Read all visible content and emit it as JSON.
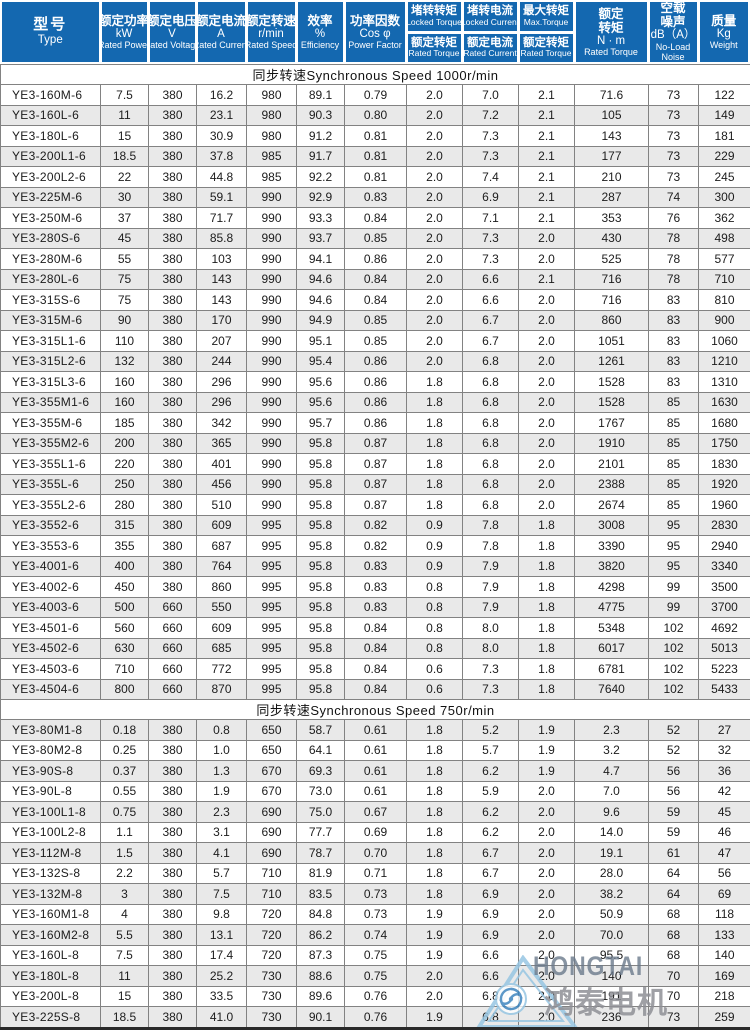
{
  "colors": {
    "header_blue": "#1468b0",
    "row_alt": "#e9e9e9",
    "grid_border": "#828282",
    "outer_border": "#5a5a5a",
    "cell_text": "#1c1c1c",
    "section_text": "#111111",
    "watermark_blue": "#97c6e3",
    "watermark_swirl": "#3f86bf",
    "watermark_brand": "#6b7a8c",
    "watermark_zh": "#8f9096",
    "bottom_line": "#2a2a2a"
  },
  "header": {
    "columns": [
      {
        "type": "plain",
        "lines": [
          {
            "t": "型号",
            "s": "zh-big"
          },
          {
            "t": "Type",
            "s": "unit"
          }
        ]
      },
      {
        "type": "plain",
        "lines": [
          {
            "t": "额定功率",
            "s": "zh"
          },
          {
            "t": "kW",
            "s": "unit"
          },
          {
            "t": "Rated Power",
            "s": "en"
          }
        ]
      },
      {
        "type": "plain",
        "lines": [
          {
            "t": "额定电压",
            "s": "zh"
          },
          {
            "t": "V",
            "s": "unit"
          },
          {
            "t": "Rated Voltage",
            "s": "en"
          }
        ]
      },
      {
        "type": "plain",
        "lines": [
          {
            "t": "额定电流",
            "s": "zh"
          },
          {
            "t": "A",
            "s": "unit"
          },
          {
            "t": "Rated Current",
            "s": "en"
          }
        ]
      },
      {
        "type": "plain",
        "lines": [
          {
            "t": "额定转速",
            "s": "zh"
          },
          {
            "t": "r/min",
            "s": "unit"
          },
          {
            "t": "Rated Speed",
            "s": "en"
          }
        ]
      },
      {
        "type": "plain",
        "lines": [
          {
            "t": "效率",
            "s": "zh"
          },
          {
            "t": "%",
            "s": "unit"
          },
          {
            "t": "Efficiency",
            "s": "en"
          }
        ]
      },
      {
        "type": "plain",
        "lines": [
          {
            "t": "功率因数",
            "s": "zh"
          },
          {
            "t": "Cos φ",
            "s": "unit"
          },
          {
            "t": "Power Factor",
            "s": "en"
          }
        ]
      },
      {
        "type": "split",
        "top": [
          {
            "t": "堵转转矩",
            "s": "zh-s"
          },
          {
            "t": "Locked Torque",
            "s": "en-s"
          }
        ],
        "bottom": [
          {
            "t": "额定转矩",
            "s": "zh-s"
          },
          {
            "t": "Rated Torque",
            "s": "en-s"
          }
        ]
      },
      {
        "type": "split",
        "top": [
          {
            "t": "堵转电流",
            "s": "zh-s"
          },
          {
            "t": "Locked Current",
            "s": "en-s"
          }
        ],
        "bottom": [
          {
            "t": "额定电流",
            "s": "zh-s"
          },
          {
            "t": "Rated Current",
            "s": "en-s"
          }
        ]
      },
      {
        "type": "split",
        "top": [
          {
            "t": "最大转矩",
            "s": "zh-s"
          },
          {
            "t": "Max.Torque",
            "s": "en-s"
          }
        ],
        "bottom": [
          {
            "t": "额定转矩",
            "s": "zh-s"
          },
          {
            "t": "Rated Torque",
            "s": "en-s"
          }
        ]
      },
      {
        "type": "plain",
        "lines": [
          {
            "t": "额定",
            "s": "zh"
          },
          {
            "t": "转矩",
            "s": "zh"
          },
          {
            "t": "N · m",
            "s": "unit"
          },
          {
            "t": "Rated Torque",
            "s": "en"
          }
        ]
      },
      {
        "type": "plain",
        "lines": [
          {
            "t": "空载",
            "s": "zh"
          },
          {
            "t": "噪声",
            "s": "zh"
          },
          {
            "t": "dB（A）",
            "s": "unit"
          },
          {
            "t": "No-Load",
            "s": "en"
          },
          {
            "t": "Noise",
            "s": "en"
          }
        ]
      },
      {
        "type": "plain",
        "lines": [
          {
            "t": "质量",
            "s": "zh"
          },
          {
            "t": "Kg",
            "s": "unit"
          },
          {
            "t": "Weight",
            "s": "en"
          }
        ]
      }
    ]
  },
  "sections": [
    {
      "title": "同步转速Synchronous Speed  1000r/min",
      "rows": [
        [
          "YE3-160M-6",
          "7.5",
          "380",
          "16.2",
          "980",
          "89.1",
          "0.79",
          "2.0",
          "7.0",
          "2.1",
          "71.6",
          "73",
          "122"
        ],
        [
          "YE3-160L-6",
          "11",
          "380",
          "23.1",
          "980",
          "90.3",
          "0.80",
          "2.0",
          "7.2",
          "2.1",
          "105",
          "73",
          "149"
        ],
        [
          "YE3-180L-6",
          "15",
          "380",
          "30.9",
          "980",
          "91.2",
          "0.81",
          "2.0",
          "7.3",
          "2.1",
          "143",
          "73",
          "181"
        ],
        [
          "YE3-200L1-6",
          "18.5",
          "380",
          "37.8",
          "985",
          "91.7",
          "0.81",
          "2.0",
          "7.3",
          "2.1",
          "177",
          "73",
          "229"
        ],
        [
          "YE3-200L2-6",
          "22",
          "380",
          "44.8",
          "985",
          "92.2",
          "0.81",
          "2.0",
          "7.4",
          "2.1",
          "210",
          "73",
          "245"
        ],
        [
          "YE3-225M-6",
          "30",
          "380",
          "59.1",
          "990",
          "92.9",
          "0.83",
          "2.0",
          "6.9",
          "2.1",
          "287",
          "74",
          "300"
        ],
        [
          "YE3-250M-6",
          "37",
          "380",
          "71.7",
          "990",
          "93.3",
          "0.84",
          "2.0",
          "7.1",
          "2.1",
          "353",
          "76",
          "362"
        ],
        [
          "YE3-280S-6",
          "45",
          "380",
          "85.8",
          "990",
          "93.7",
          "0.85",
          "2.0",
          "7.3",
          "2.0",
          "430",
          "78",
          "498"
        ],
        [
          "YE3-280M-6",
          "55",
          "380",
          "103",
          "990",
          "94.1",
          "0.86",
          "2.0",
          "7.3",
          "2.0",
          "525",
          "78",
          "577"
        ],
        [
          "YE3-280L-6",
          "75",
          "380",
          "143",
          "990",
          "94.6",
          "0.84",
          "2.0",
          "6.6",
          "2.1",
          "716",
          "78",
          "710"
        ],
        [
          "YE3-315S-6",
          "75",
          "380",
          "143",
          "990",
          "94.6",
          "0.84",
          "2.0",
          "6.6",
          "2.0",
          "716",
          "83",
          "810"
        ],
        [
          "YE3-315M-6",
          "90",
          "380",
          "170",
          "990",
          "94.9",
          "0.85",
          "2.0",
          "6.7",
          "2.0",
          "860",
          "83",
          "900"
        ],
        [
          "YE3-315L1-6",
          "110",
          "380",
          "207",
          "990",
          "95.1",
          "0.85",
          "2.0",
          "6.7",
          "2.0",
          "1051",
          "83",
          "1060"
        ],
        [
          "YE3-315L2-6",
          "132",
          "380",
          "244",
          "990",
          "95.4",
          "0.86",
          "2.0",
          "6.8",
          "2.0",
          "1261",
          "83",
          "1210"
        ],
        [
          "YE3-315L3-6",
          "160",
          "380",
          "296",
          "990",
          "95.6",
          "0.86",
          "1.8",
          "6.8",
          "2.0",
          "1528",
          "83",
          "1310"
        ],
        [
          "YE3-355M1-6",
          "160",
          "380",
          "296",
          "990",
          "95.6",
          "0.86",
          "1.8",
          "6.8",
          "2.0",
          "1528",
          "85",
          "1630"
        ],
        [
          "YE3-355M-6",
          "185",
          "380",
          "342",
          "990",
          "95.7",
          "0.86",
          "1.8",
          "6.8",
          "2.0",
          "1767",
          "85",
          "1680"
        ],
        [
          "YE3-355M2-6",
          "200",
          "380",
          "365",
          "990",
          "95.8",
          "0.87",
          "1.8",
          "6.8",
          "2.0",
          "1910",
          "85",
          "1750"
        ],
        [
          "YE3-355L1-6",
          "220",
          "380",
          "401",
          "990",
          "95.8",
          "0.87",
          "1.8",
          "6.8",
          "2.0",
          "2101",
          "85",
          "1830"
        ],
        [
          "YE3-355L-6",
          "250",
          "380",
          "456",
          "990",
          "95.8",
          "0.87",
          "1.8",
          "6.8",
          "2.0",
          "2388",
          "85",
          "1920"
        ],
        [
          "YE3-355L2-6",
          "280",
          "380",
          "510",
          "990",
          "95.8",
          "0.87",
          "1.8",
          "6.8",
          "2.0",
          "2674",
          "85",
          "1960"
        ],
        [
          "YE3-3552-6",
          "315",
          "380",
          "609",
          "995",
          "95.8",
          "0.82",
          "0.9",
          "7.8",
          "1.8",
          "3008",
          "95",
          "2830"
        ],
        [
          "YE3-3553-6",
          "355",
          "380",
          "687",
          "995",
          "95.8",
          "0.82",
          "0.9",
          "7.8",
          "1.8",
          "3390",
          "95",
          "2940"
        ],
        [
          "YE3-4001-6",
          "400",
          "380",
          "764",
          "995",
          "95.8",
          "0.83",
          "0.9",
          "7.9",
          "1.8",
          "3820",
          "95",
          "3340"
        ],
        [
          "YE3-4002-6",
          "450",
          "380",
          "860",
          "995",
          "95.8",
          "0.83",
          "0.8",
          "7.9",
          "1.8",
          "4298",
          "99",
          "3500"
        ],
        [
          "YE3-4003-6",
          "500",
          "660",
          "550",
          "995",
          "95.8",
          "0.83",
          "0.8",
          "7.9",
          "1.8",
          "4775",
          "99",
          "3700"
        ],
        [
          "YE3-4501-6",
          "560",
          "660",
          "609",
          "995",
          "95.8",
          "0.84",
          "0.8",
          "8.0",
          "1.8",
          "5348",
          "102",
          "4692"
        ],
        [
          "YE3-4502-6",
          "630",
          "660",
          "685",
          "995",
          "95.8",
          "0.84",
          "0.8",
          "8.0",
          "1.8",
          "6017",
          "102",
          "5013"
        ],
        [
          "YE3-4503-6",
          "710",
          "660",
          "772",
          "995",
          "95.8",
          "0.84",
          "0.6",
          "7.3",
          "1.8",
          "6781",
          "102",
          "5223"
        ],
        [
          "YE3-4504-6",
          "800",
          "660",
          "870",
          "995",
          "95.8",
          "0.84",
          "0.6",
          "7.3",
          "1.8",
          "7640",
          "102",
          "5433"
        ]
      ]
    },
    {
      "title": "同步转速Synchronous Speed  750r/min",
      "rows": [
        [
          "YE3-80M1-8",
          "0.18",
          "380",
          "0.8",
          "650",
          "58.7",
          "0.61",
          "1.8",
          "5.2",
          "1.9",
          "2.3",
          "52",
          "27"
        ],
        [
          "YE3-80M2-8",
          "0.25",
          "380",
          "1.0",
          "650",
          "64.1",
          "0.61",
          "1.8",
          "5.7",
          "1.9",
          "3.2",
          "52",
          "32"
        ],
        [
          "YE3-90S-8",
          "0.37",
          "380",
          "1.3",
          "670",
          "69.3",
          "0.61",
          "1.8",
          "6.2",
          "1.9",
          "4.7",
          "56",
          "36"
        ],
        [
          "YE3-90L-8",
          "0.55",
          "380",
          "1.9",
          "670",
          "73.0",
          "0.61",
          "1.8",
          "5.9",
          "2.0",
          "7.0",
          "56",
          "42"
        ],
        [
          "YE3-100L1-8",
          "0.75",
          "380",
          "2.3",
          "690",
          "75.0",
          "0.67",
          "1.8",
          "6.2",
          "2.0",
          "9.6",
          "59",
          "45"
        ],
        [
          "YE3-100L2-8",
          "1.1",
          "380",
          "3.1",
          "690",
          "77.7",
          "0.69",
          "1.8",
          "6.2",
          "2.0",
          "14.0",
          "59",
          "46"
        ],
        [
          "YE3-112M-8",
          "1.5",
          "380",
          "4.1",
          "690",
          "78.7",
          "0.70",
          "1.8",
          "6.7",
          "2.0",
          "19.1",
          "61",
          "47"
        ],
        [
          "YE3-132S-8",
          "2.2",
          "380",
          "5.7",
          "710",
          "81.9",
          "0.71",
          "1.8",
          "6.7",
          "2.0",
          "28.0",
          "64",
          "56"
        ],
        [
          "YE3-132M-8",
          "3",
          "380",
          "7.5",
          "710",
          "83.5",
          "0.73",
          "1.8",
          "6.9",
          "2.0",
          "38.2",
          "64",
          "69"
        ],
        [
          "YE3-160M1-8",
          "4",
          "380",
          "9.8",
          "720",
          "84.8",
          "0.73",
          "1.9",
          "6.9",
          "2.0",
          "50.9",
          "68",
          "118"
        ],
        [
          "YE3-160M2-8",
          "5.5",
          "380",
          "13.1",
          "720",
          "86.2",
          "0.74",
          "1.9",
          "6.9",
          "2.0",
          "70.0",
          "68",
          "133"
        ],
        [
          "YE3-160L-8",
          "7.5",
          "380",
          "17.4",
          "720",
          "87.3",
          "0.75",
          "1.9",
          "6.6",
          "2.0",
          "95.5",
          "68",
          "140"
        ],
        [
          "YE3-180L-8",
          "11",
          "380",
          "25.2",
          "730",
          "88.6",
          "0.75",
          "2.0",
          "6.6",
          "2.0",
          "140",
          "70",
          "169"
        ],
        [
          "YE3-200L-8",
          "15",
          "380",
          "33.5",
          "730",
          "89.6",
          "0.76",
          "2.0",
          "6.8",
          "2.0",
          "191",
          "70",
          "218"
        ],
        [
          "YE3-225S-8",
          "18.5",
          "380",
          "41.0",
          "730",
          "90.1",
          "0.76",
          "1.9",
          "6.8",
          "2.0",
          "236",
          "73",
          "259"
        ]
      ]
    }
  ],
  "watermark": {
    "brand": "HONGTAI",
    "brand_zh": "鸿泰电机"
  }
}
